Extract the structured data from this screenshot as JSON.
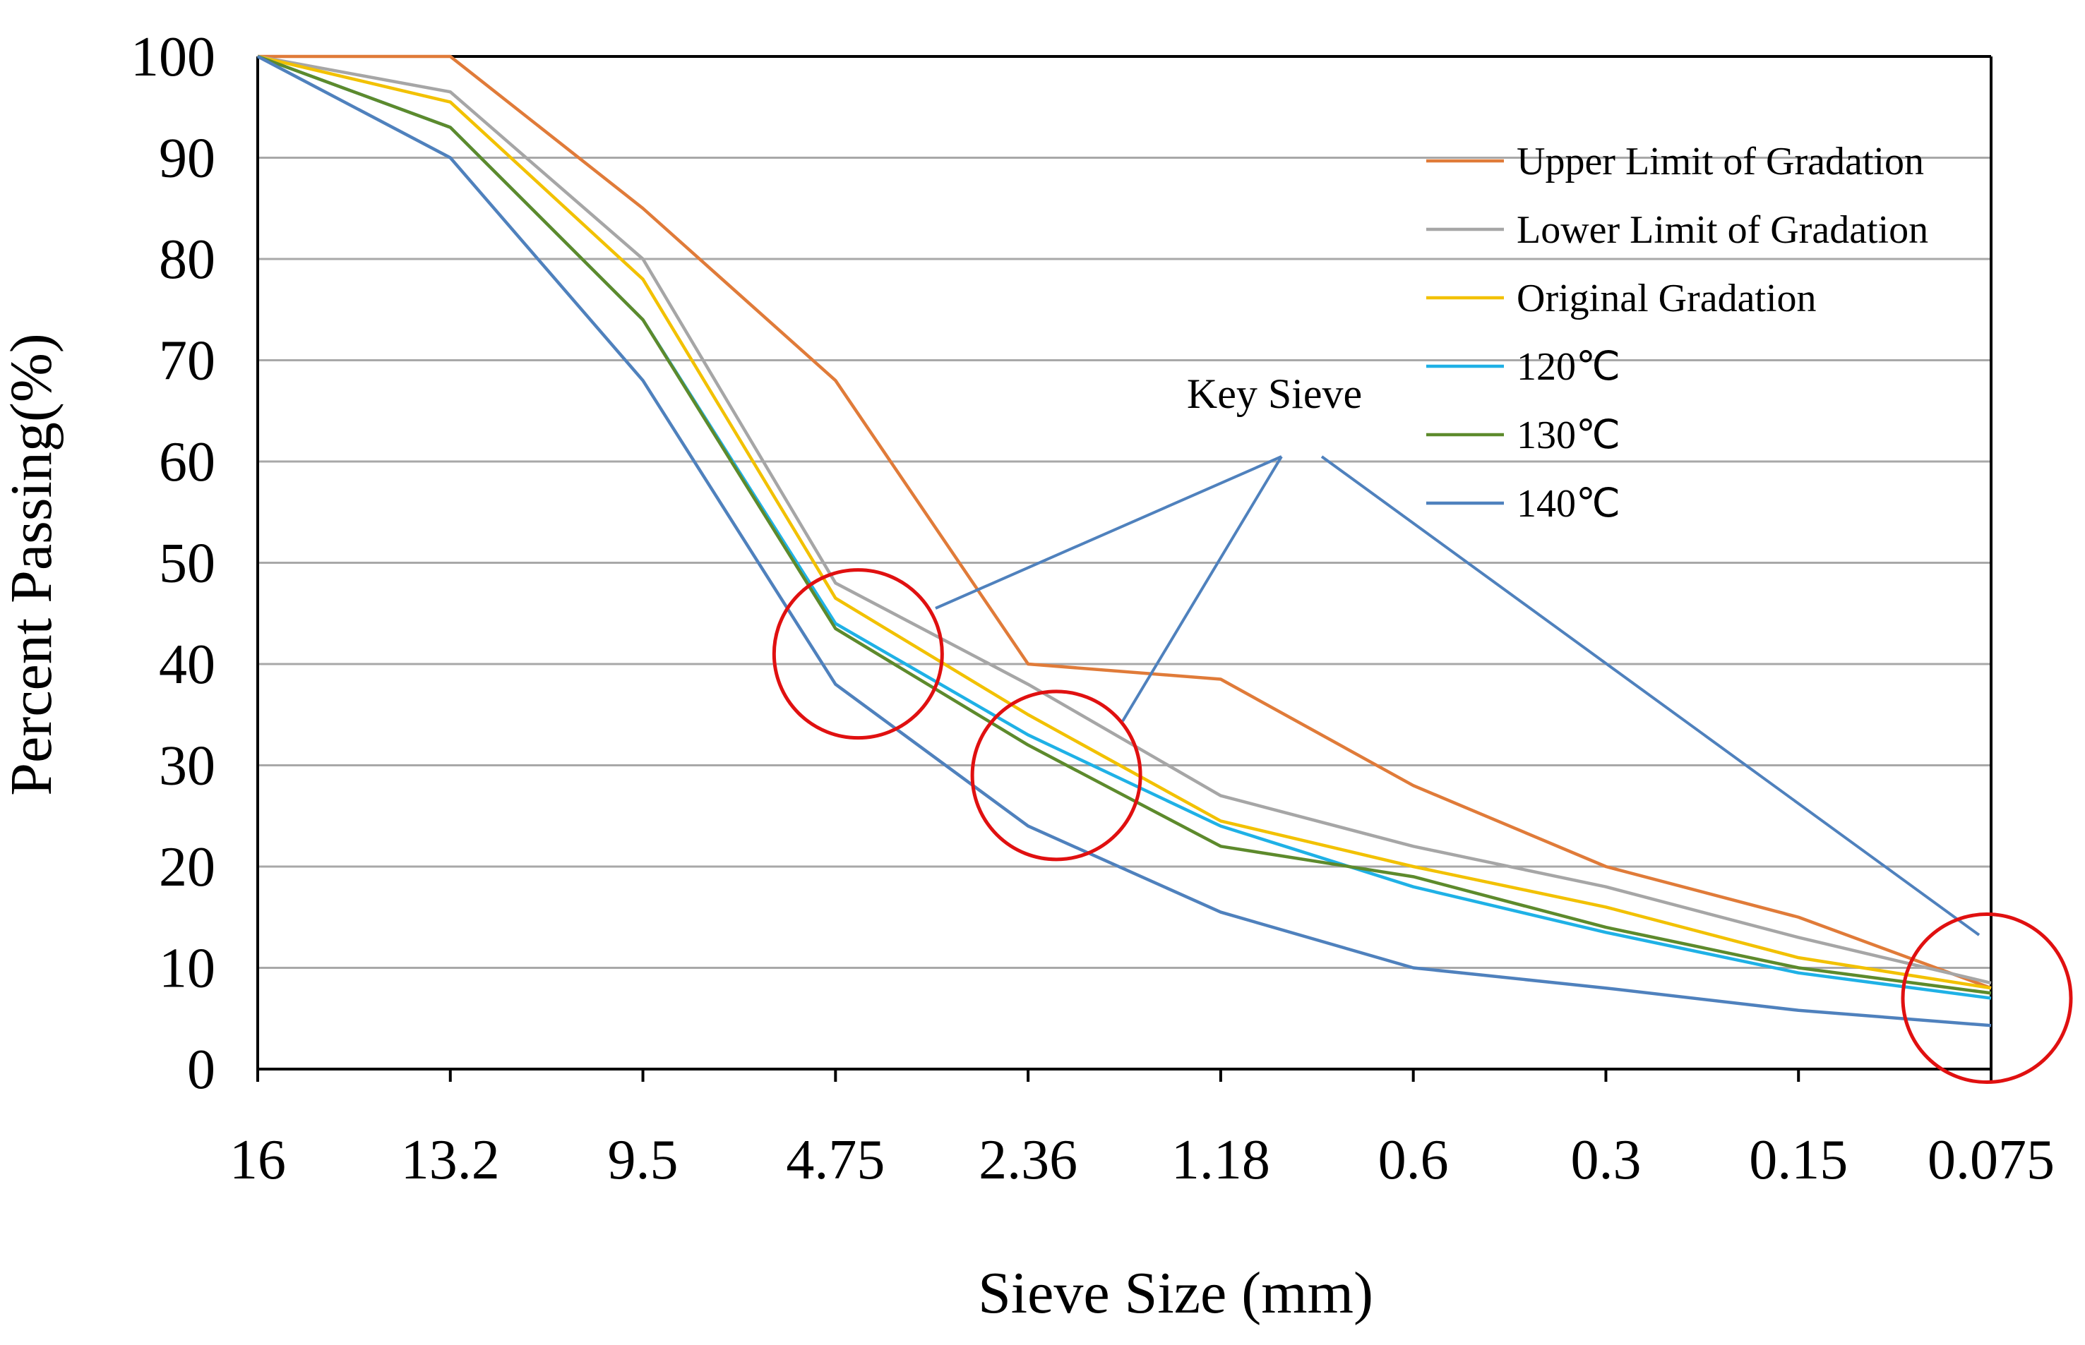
{
  "chart_data": {
    "type": "line",
    "xlabel": "Sieve Size (mm)",
    "ylabel": "Percent Passing(%)",
    "ylim": [
      0,
      100
    ],
    "yticks": [
      "0",
      "10",
      "20",
      "30",
      "40",
      "50",
      "60",
      "70",
      "80",
      "90",
      "100"
    ],
    "categories": [
      "16",
      "13.2",
      "9.5",
      "4.75",
      "2.36",
      "1.18",
      "0.6",
      "0.3",
      "0.15",
      "0.075"
    ],
    "grid": true,
    "legend_position": "top-right",
    "series": [
      {
        "name": "Upper Limit of Gradation",
        "color": "#e07b39",
        "values": [
          100,
          100,
          85,
          68,
          40,
          38.5,
          28,
          20,
          15,
          8
        ]
      },
      {
        "name": "Lower Limit of Gradation",
        "color": "#a6a6a6",
        "values": [
          100,
          96.5,
          80,
          48,
          38,
          27,
          22,
          18,
          13,
          8.5
        ]
      },
      {
        "name": "Original Gradation",
        "color": "#f2c100",
        "values": [
          100,
          95.5,
          78,
          46.5,
          35,
          24.5,
          20,
          16,
          11,
          8
        ]
      },
      {
        "name": "120℃",
        "color": "#1fb1e6",
        "values": [
          100,
          93,
          74,
          44,
          33,
          24,
          18,
          13.5,
          9.5,
          7
        ]
      },
      {
        "name": "130℃",
        "color": "#5d8a2c",
        "values": [
          100,
          93,
          74,
          43.5,
          32,
          22,
          19,
          14,
          10,
          7.5
        ]
      },
      {
        "name": "140℃",
        "color": "#4f81bd",
        "values": [
          100,
          90,
          68,
          38,
          24,
          15.5,
          10,
          8,
          5.8,
          4.3
        ]
      }
    ],
    "annotation": {
      "label": "Key Sieve",
      "line_color": "#4f81bd",
      "circle_color": "#e01010",
      "key_sieves": [
        {
          "category": "4.75",
          "value": 41
        },
        {
          "category": "2.36",
          "value": 29
        },
        {
          "category": "0.075",
          "value": 7
        }
      ]
    }
  }
}
